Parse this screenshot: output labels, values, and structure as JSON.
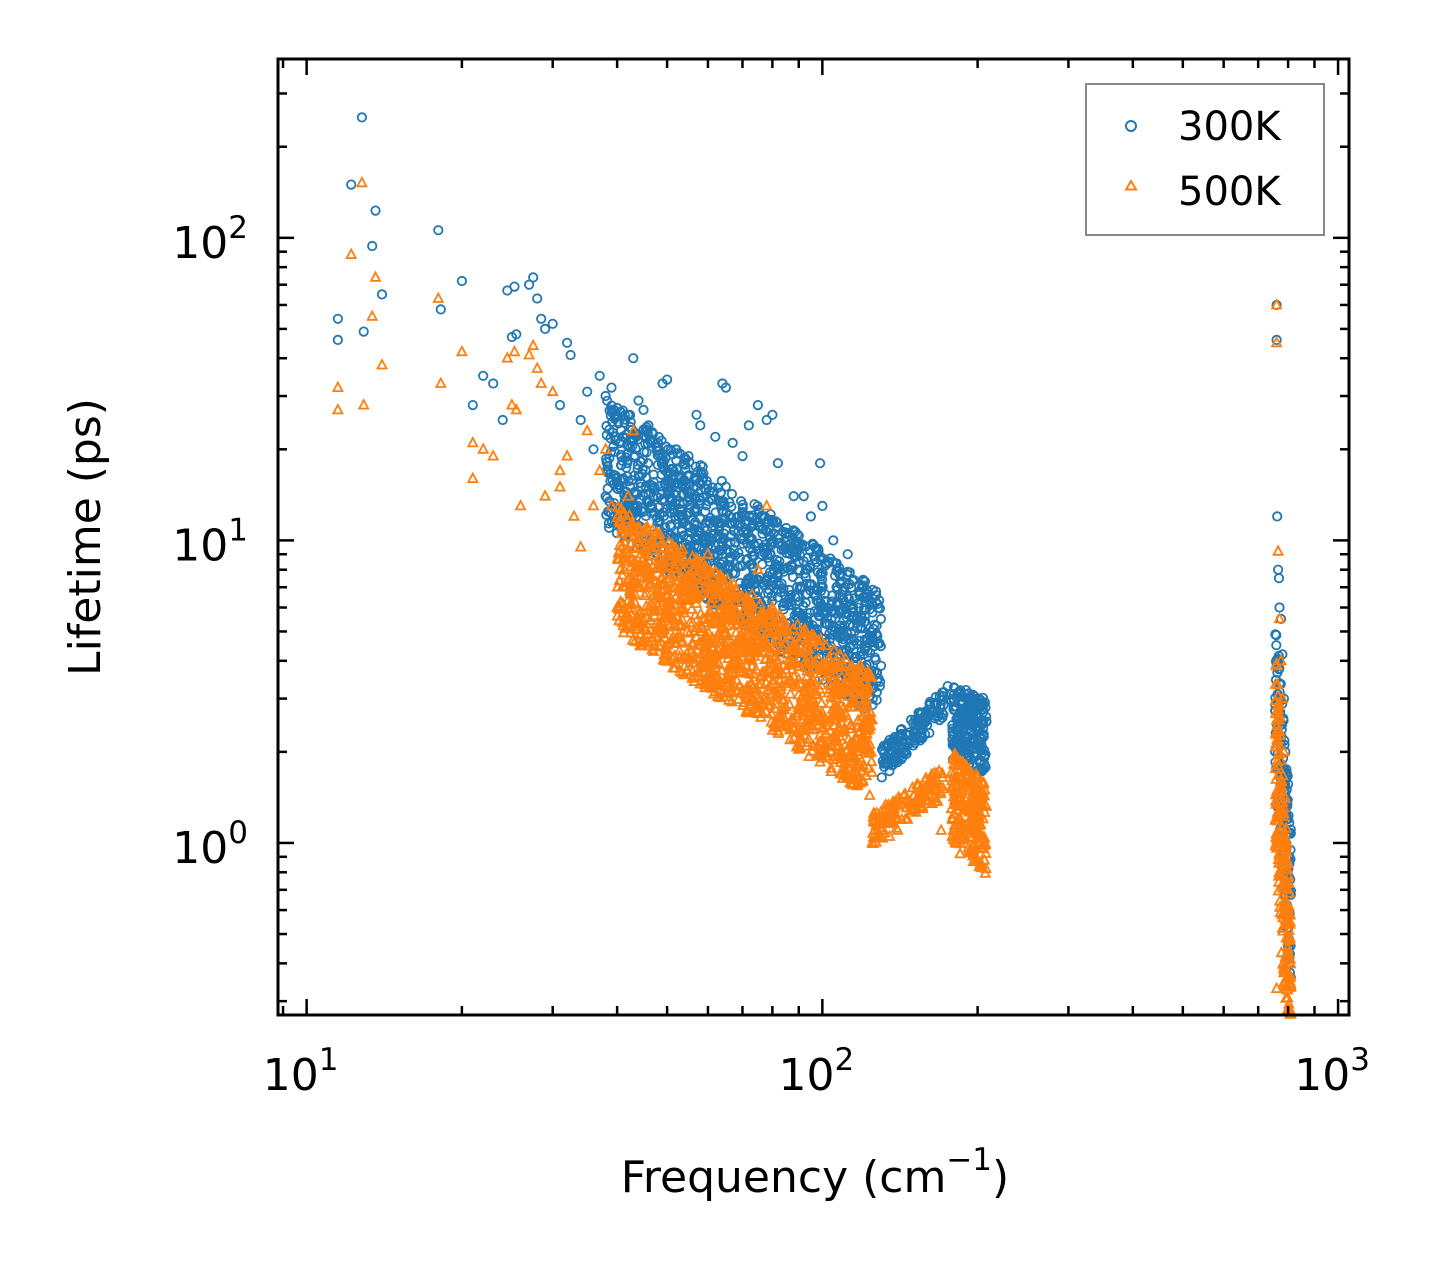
{
  "chart_data": {
    "type": "scatter",
    "x_scale": "log",
    "y_scale": "log",
    "xlim": [
      8.8,
      1050
    ],
    "ylim": [
      0.27,
      390
    ],
    "xlabel": "Frequency (cm",
    "xlabel_sup": "−1",
    "xlabel_end": ")",
    "ylabel": "Lifetime (ps)",
    "x_ticks": [
      {
        "base": "10",
        "exp": "1",
        "value": 10
      },
      {
        "base": "10",
        "exp": "2",
        "value": 100
      },
      {
        "base": "10",
        "exp": "3",
        "value": 1000
      }
    ],
    "y_ticks": [
      {
        "base": "10",
        "exp": "0",
        "value": 1
      },
      {
        "base": "10",
        "exp": "1",
        "value": 10
      },
      {
        "base": "10",
        "exp": "2",
        "value": 100
      }
    ],
    "legend_position": "top-right",
    "series": [
      {
        "name": "300K",
        "marker": "circle",
        "color": "#1f77b4",
        "points": [
          [
            11.5,
            54
          ],
          [
            11.5,
            46
          ],
          [
            12.2,
            150
          ],
          [
            12.8,
            250
          ],
          [
            12.9,
            49
          ],
          [
            13.4,
            94
          ],
          [
            13.6,
            123
          ],
          [
            14,
            65
          ],
          [
            18,
            106
          ],
          [
            18.2,
            58
          ],
          [
            20,
            72
          ],
          [
            21,
            28
          ],
          [
            22,
            35
          ],
          [
            23,
            33
          ],
          [
            24,
            25
          ],
          [
            24.5,
            67
          ],
          [
            25.3,
            69
          ],
          [
            25,
            47
          ],
          [
            25.5,
            48
          ],
          [
            27,
            70
          ],
          [
            27.5,
            74
          ],
          [
            28,
            63
          ],
          [
            28.5,
            54
          ],
          [
            29,
            50
          ],
          [
            30,
            52
          ],
          [
            31,
            28
          ],
          [
            32,
            45
          ],
          [
            32.5,
            41
          ],
          [
            34,
            25
          ],
          [
            35,
            31
          ],
          [
            36,
            20
          ],
          [
            37,
            35
          ],
          [
            38,
            30
          ],
          [
            39,
            32
          ],
          [
            40,
            16
          ],
          [
            41,
            22
          ],
          [
            42,
            26
          ],
          [
            43,
            40
          ],
          [
            44,
            29
          ],
          [
            45,
            27
          ],
          [
            46,
            24
          ],
          [
            48,
            21
          ],
          [
            49,
            33
          ],
          [
            50,
            34
          ],
          [
            52,
            20
          ],
          [
            55,
            19
          ],
          [
            57,
            26
          ],
          [
            58,
            24
          ],
          [
            62,
            22
          ],
          [
            64,
            33
          ],
          [
            65,
            32
          ],
          [
            67,
            21
          ],
          [
            70,
            19
          ],
          [
            72,
            24
          ],
          [
            75,
            28
          ],
          [
            78,
            25
          ],
          [
            80,
            26
          ],
          [
            82,
            18
          ],
          [
            88,
            14
          ],
          [
            92,
            14
          ],
          [
            95,
            12
          ],
          [
            99,
            18
          ],
          [
            100,
            13
          ],
          [
            105,
            10
          ],
          [
            112,
            9
          ],
          [
            120,
            7
          ],
          [
            135,
            1.9
          ],
          [
            140,
            1.85
          ],
          [
            145,
            2.0
          ],
          [
            150,
            2.1
          ],
          [
            155,
            2.3
          ],
          [
            160,
            2.6
          ],
          [
            165,
            2.9
          ],
          [
            175,
            3.3
          ],
          [
            180,
            3.1
          ],
          [
            185,
            2.9
          ],
          [
            190,
            3.2
          ],
          [
            195,
            2.8
          ],
          [
            200,
            2.6
          ],
          [
            205,
            2.7
          ],
          [
            760,
            60
          ],
          [
            760,
            46
          ],
          [
            762,
            12
          ],
          [
            765,
            8
          ],
          [
            768,
            7.5
          ],
          [
            770,
            6
          ],
          [
            775,
            5.5
          ],
          [
            780,
            4.2
          ],
          [
            785,
            3.0
          ],
          [
            790,
            2.0
          ],
          [
            795,
            1.5
          ],
          [
            800,
            1.2
          ],
          [
            805,
            0.9
          ]
        ],
        "bands": [
          {
            "x": [
              38,
              130
            ],
            "y_start": [
              22,
              5.0
            ],
            "spread": [
              0.5,
              1.35
            ],
            "n": 1400
          },
          {
            "x": [
              130,
              172
            ],
            "y_start": [
              1.85,
              2.9
            ],
            "spread": [
              0.88,
              1.12
            ],
            "n": 140
          },
          {
            "x": [
              178,
              208
            ],
            "y_start": [
              2.9,
              2.6
            ],
            "spread": [
              0.65,
              1.15
            ],
            "n": 220
          },
          {
            "x": [
              755,
              810
            ],
            "y_start": [
              5.5,
              1.1
            ],
            "spread": [
              0.3,
              1.1
            ],
            "n": 200
          }
        ]
      },
      {
        "name": "500K",
        "marker": "triangle",
        "color": "#ff7f0e",
        "points": [
          [
            11.5,
            32
          ],
          [
            11.5,
            27
          ],
          [
            12.2,
            88
          ],
          [
            12.8,
            152
          ],
          [
            12.9,
            28
          ],
          [
            13.4,
            55
          ],
          [
            13.6,
            74
          ],
          [
            14,
            38
          ],
          [
            18,
            63
          ],
          [
            18.2,
            33
          ],
          [
            20,
            42
          ],
          [
            21,
            21
          ],
          [
            22,
            20
          ],
          [
            23,
            19
          ],
          [
            21,
            16
          ],
          [
            24.5,
            40
          ],
          [
            25.3,
            42
          ],
          [
            25,
            28
          ],
          [
            25.5,
            27
          ],
          [
            26,
            13
          ],
          [
            27,
            41
          ],
          [
            27.5,
            44
          ],
          [
            28,
            37
          ],
          [
            28.5,
            33
          ],
          [
            29,
            14
          ],
          [
            30,
            31
          ],
          [
            31,
            17
          ],
          [
            31,
            15
          ],
          [
            32,
            19
          ],
          [
            33,
            12
          ],
          [
            34,
            9.5
          ],
          [
            35,
            23
          ],
          [
            36,
            13
          ],
          [
            37,
            17
          ],
          [
            38,
            20
          ],
          [
            39,
            13
          ],
          [
            40,
            6
          ],
          [
            41,
            11
          ],
          [
            42,
            14
          ],
          [
            43,
            23
          ],
          [
            44,
            11
          ],
          [
            45,
            5.5
          ],
          [
            46,
            7.5
          ],
          [
            48,
            5.2
          ],
          [
            50,
            6.5
          ],
          [
            52,
            5.2
          ],
          [
            55,
            6.8
          ],
          [
            58,
            5.0
          ],
          [
            60,
            9
          ],
          [
            62,
            7
          ],
          [
            65,
            4.9
          ],
          [
            67,
            6.5
          ],
          [
            70,
            5
          ],
          [
            72,
            4.8
          ],
          [
            75,
            8
          ],
          [
            78,
            13
          ],
          [
            80,
            6
          ],
          [
            82,
            5
          ],
          [
            88,
            4.5
          ],
          [
            92,
            5
          ],
          [
            95,
            4
          ],
          [
            100,
            3.8
          ],
          [
            105,
            3.2
          ],
          [
            110,
            2.8
          ],
          [
            120,
            2.5
          ],
          [
            128,
            1.1
          ],
          [
            135,
            1.05
          ],
          [
            140,
            1.1
          ],
          [
            145,
            1.2
          ],
          [
            150,
            1.3
          ],
          [
            155,
            1.4
          ],
          [
            160,
            1.5
          ],
          [
            165,
            1.7
          ],
          [
            170,
            1.1
          ],
          [
            180,
            1.9
          ],
          [
            185,
            0.92
          ],
          [
            190,
            1.8
          ],
          [
            195,
            1.4
          ],
          [
            200,
            1.3
          ],
          [
            205,
            1.2
          ],
          [
            760,
            60
          ],
          [
            760,
            45
          ],
          [
            765,
            9.2
          ],
          [
            770,
            5.5
          ],
          [
            775,
            4.0
          ],
          [
            780,
            3.0
          ],
          [
            785,
            2.0
          ],
          [
            790,
            1.4
          ],
          [
            795,
            1.0
          ],
          [
            800,
            0.7
          ],
          [
            805,
            0.55
          ],
          [
            760,
            0.33
          ]
        ],
        "bands": [
          {
            "x": [
              40,
              125
            ],
            "y_start": [
              10,
              2.8
            ],
            "spread": [
              0.5,
              1.3
            ],
            "n": 1400
          },
          {
            "x": [
              125,
              172
            ],
            "y_start": [
              1.12,
              1.6
            ],
            "spread": [
              0.88,
              1.12
            ],
            "n": 140
          },
          {
            "x": [
              178,
              208
            ],
            "y_start": [
              1.7,
              1.3
            ],
            "spread": [
              0.6,
              1.2
            ],
            "n": 220
          },
          {
            "x": [
              755,
              810
            ],
            "y_start": [
              4.0,
              0.5
            ],
            "spread": [
              0.25,
              1.2
            ],
            "n": 220
          }
        ]
      }
    ]
  }
}
